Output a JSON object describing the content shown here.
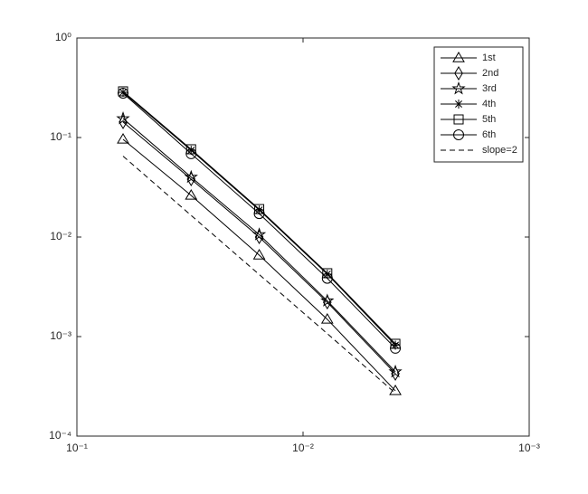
{
  "chart_data": {
    "type": "line",
    "xscale": "log",
    "yscale": "log",
    "x": [
      0.0625,
      0.03125,
      0.015625,
      0.0078125,
      0.00390625
    ],
    "xlim": [
      0.1,
      0.001
    ],
    "xticks": [
      {
        "value": 0.1,
        "label": "10⁻¹"
      },
      {
        "value": 0.01,
        "label": "10⁻²"
      },
      {
        "value": 0.001,
        "label": "10⁻³"
      }
    ],
    "ylim": [
      0.0001,
      1
    ],
    "yticks": [
      {
        "value": 0.0001,
        "label": "10⁻⁴"
      },
      {
        "value": 0.001,
        "label": "10⁻³"
      },
      {
        "value": 0.01,
        "label": "10⁻²"
      },
      {
        "value": 0.1,
        "label": "10⁻¹"
      },
      {
        "value": 1,
        "label": "10⁰"
      }
    ],
    "legend": "top-right",
    "series": [
      {
        "name": "1st",
        "color": "#000000",
        "marker": "triangle",
        "values": [
          0.096,
          0.0262,
          0.00658,
          0.00149,
          0.000285
        ]
      },
      {
        "name": "2nd",
        "color": "#000000",
        "marker": "diamond",
        "values": [
          0.143,
          0.0382,
          0.01,
          0.00221,
          0.000424
        ]
      },
      {
        "name": "3rd",
        "color": "#000000",
        "marker": "pentagram",
        "values": [
          0.155,
          0.04,
          0.0106,
          0.00229,
          0.000443
        ]
      },
      {
        "name": "4th",
        "color": "#000000",
        "marker": "asterisk",
        "values": [
          0.285,
          0.0745,
          0.0187,
          0.00424,
          0.00082
        ]
      },
      {
        "name": "5th",
        "color": "#000000",
        "marker": "square",
        "values": [
          0.291,
          0.0762,
          0.0191,
          0.00433,
          0.000846
        ]
      },
      {
        "name": "6th",
        "color": "#000000",
        "marker": "circle",
        "values": [
          0.279,
          0.0687,
          0.0172,
          0.00385,
          0.000763
        ]
      },
      {
        "name": "slope=2",
        "color": "#000000",
        "marker": "none",
        "dash": true,
        "values": [
          0.065,
          0.0165,
          0.0042,
          0.00107,
          0.00027
        ]
      }
    ]
  }
}
